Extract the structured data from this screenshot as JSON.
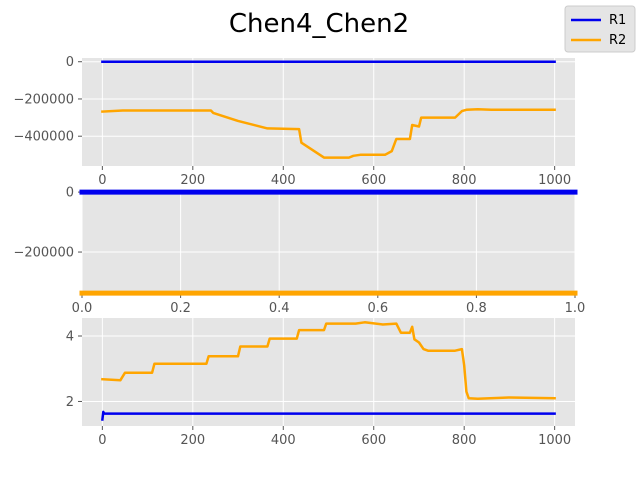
{
  "figure": {
    "title": "Chen4_Chen2"
  },
  "legend": {
    "placement": "top-right",
    "items": [
      {
        "name": "R1",
        "color": "#0000ee"
      },
      {
        "name": "R2",
        "color": "#ffa500"
      }
    ]
  },
  "chart_data": [
    {
      "type": "line",
      "xlim": [
        -45,
        1045
      ],
      "ylim": [
        -560000,
        20000
      ],
      "xticks": [
        0,
        200,
        400,
        600,
        800,
        1000
      ],
      "xtick_labels": [
        "0",
        "200",
        "400",
        "600",
        "800",
        "1000"
      ],
      "yticks": [
        0,
        -200000,
        -400000
      ],
      "ytick_labels": [
        "0",
        "−200000",
        "−400000"
      ],
      "grid": true,
      "series": [
        {
          "name": "R1",
          "color": "#0000ee",
          "x": [
            0,
            1000
          ],
          "y": [
            0,
            0
          ]
        },
        {
          "name": "R2",
          "color": "#ffa500",
          "x": [
            0,
            45,
            240,
            245,
            300,
            365,
            400,
            435,
            440,
            490,
            545,
            555,
            570,
            625,
            640,
            650,
            680,
            685,
            700,
            705,
            710,
            780,
            795,
            805,
            830,
            860,
            1000
          ],
          "y": [
            -268000,
            -262000,
            -262000,
            -275000,
            -318000,
            -358000,
            -360000,
            -362000,
            -435000,
            -515000,
            -515000,
            -505000,
            -500000,
            -500000,
            -480000,
            -415000,
            -415000,
            -340000,
            -348000,
            -300000,
            -300000,
            -300000,
            -265000,
            -258000,
            -255000,
            -258000,
            -258000
          ]
        }
      ]
    },
    {
      "type": "line",
      "xlim": [
        0,
        1
      ],
      "ylim": [
        -340000,
        7000
      ],
      "xticks": [
        0,
        0.2,
        0.4,
        0.6,
        0.8,
        1.0
      ],
      "xtick_labels": [
        "0.0",
        "0.2",
        "0.4",
        "0.6",
        "0.8",
        "1.0"
      ],
      "yticks": [
        0,
        -200000
      ],
      "ytick_labels": [
        "0",
        "−200000"
      ],
      "grid": true,
      "series": [
        {
          "name": "R1",
          "color": "#0000ee",
          "x": [
            0,
            1
          ],
          "y": [
            0,
            0
          ]
        },
        {
          "name": "R2",
          "color": "#ffa500",
          "x": [
            0,
            1
          ],
          "y": [
            -337000,
            -337000
          ]
        }
      ]
    },
    {
      "type": "line",
      "xlim": [
        -45,
        1045
      ],
      "ylim": [
        1.25,
        4.55
      ],
      "xticks": [
        0,
        200,
        400,
        600,
        800,
        1000
      ],
      "xtick_labels": [
        "0",
        "200",
        "400",
        "600",
        "800",
        "1000"
      ],
      "yticks": [
        2,
        4
      ],
      "ytick_labels": [
        "2",
        "4"
      ],
      "grid": true,
      "series": [
        {
          "name": "R1",
          "color": "#0000ee",
          "x": [
            0,
            2,
            4,
            1000
          ],
          "y": [
            1.45,
            1.68,
            1.63,
            1.63
          ]
        },
        {
          "name": "R2",
          "color": "#ffa500",
          "x": [
            0,
            40,
            50,
            110,
            115,
            230,
            235,
            300,
            305,
            365,
            370,
            430,
            435,
            490,
            495,
            560,
            580,
            620,
            650,
            660,
            680,
            685,
            690,
            700,
            710,
            720,
            780,
            795,
            800,
            805,
            810,
            830,
            900,
            1000
          ],
          "y": [
            2.68,
            2.65,
            2.88,
            2.88,
            3.15,
            3.15,
            3.38,
            3.38,
            3.68,
            3.68,
            3.92,
            3.92,
            4.18,
            4.18,
            4.38,
            4.38,
            4.42,
            4.35,
            4.38,
            4.1,
            4.1,
            4.28,
            3.9,
            3.8,
            3.6,
            3.55,
            3.55,
            3.6,
            3.1,
            2.3,
            2.1,
            2.08,
            2.12,
            2.1
          ]
        }
      ]
    }
  ]
}
